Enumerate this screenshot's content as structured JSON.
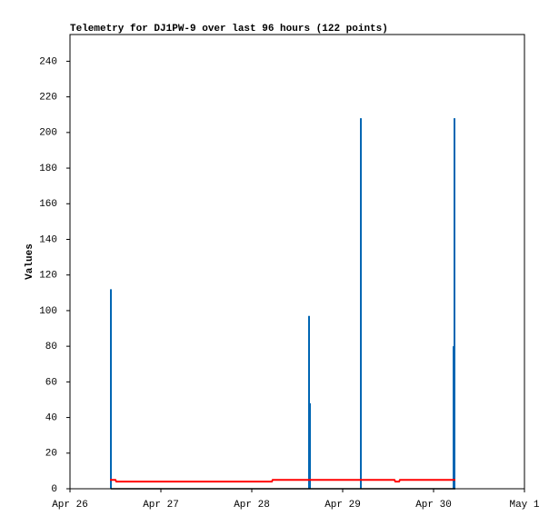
{
  "chart_data": {
    "type": "line",
    "title": "Telemetry for DJ1PW-9 over last 96 hours (122 points)",
    "y_label": "Values",
    "xlim": [
      0,
      5
    ],
    "xticks": [
      {
        "value": 0,
        "label": "Apr 26"
      },
      {
        "value": 1,
        "label": "Apr 27"
      },
      {
        "value": 2,
        "label": "Apr 28"
      },
      {
        "value": 3,
        "label": "Apr 29"
      },
      {
        "value": 4,
        "label": "Apr 30"
      },
      {
        "value": 5,
        "label": "May 1"
      }
    ],
    "ylim": [
      0,
      255
    ],
    "yticks": [
      0,
      20,
      40,
      60,
      80,
      100,
      120,
      140,
      160,
      180,
      200,
      220,
      240
    ],
    "series": [
      {
        "color": "#0066b3",
        "style": "impulse",
        "x": [
          0.45,
          2.63,
          2.64,
          3.2,
          4.22,
          4.23
        ],
        "values": [
          112,
          97,
          48,
          208,
          80,
          208
        ]
      },
      {
        "color": "#ff0000",
        "style": "step",
        "x": [
          0.44,
          0.5,
          0.51,
          2.22,
          2.23,
          3.57,
          3.58,
          3.62,
          3.63,
          4.24
        ],
        "values": [
          5,
          5,
          4,
          4,
          5,
          5,
          4,
          4,
          5,
          5
        ]
      },
      {
        "color": "#000000",
        "style": "line",
        "x": [
          0.45,
          4.24
        ],
        "values": [
          0,
          0
        ]
      }
    ]
  }
}
